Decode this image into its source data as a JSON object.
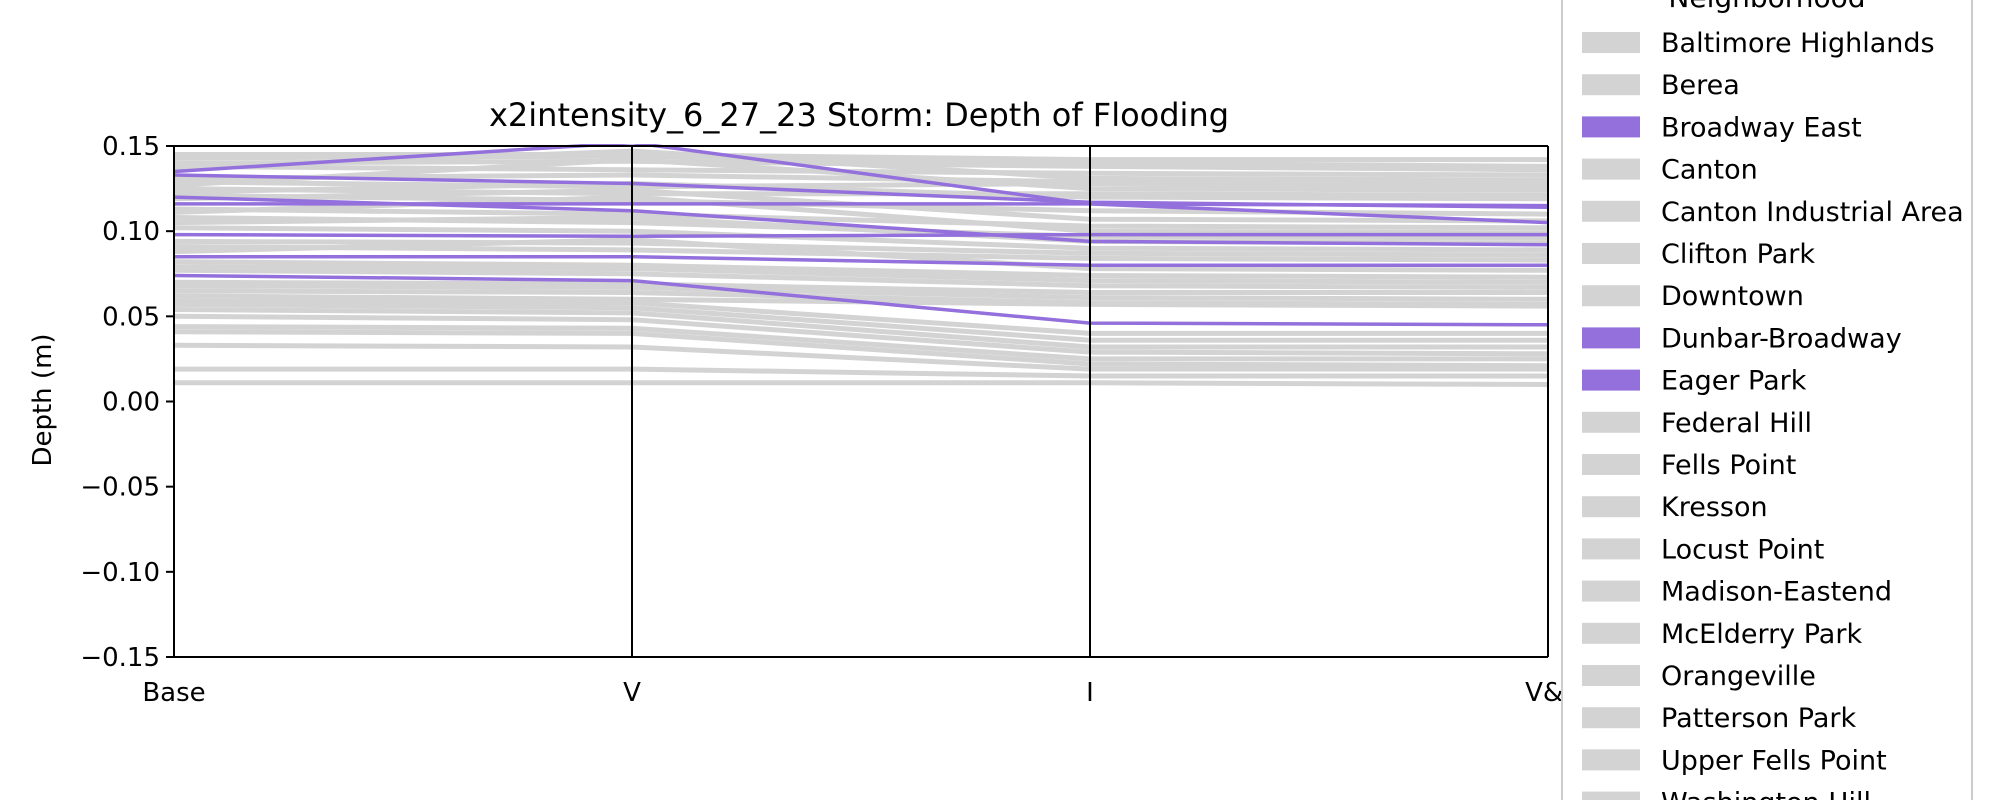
{
  "chart_data": {
    "type": "line",
    "subtype": "parallel-coordinates",
    "title": "x2intensity_6_27_23 Storm: Depth of Flooding",
    "xlabel": "",
    "ylabel": "Depth (m)",
    "categories": [
      "Base",
      "V",
      "I",
      "V&I"
    ],
    "ylim": [
      -0.15,
      0.15
    ],
    "yticks": [
      "0.15",
      "0.10",
      "0.05",
      "0.00",
      "−0.05",
      "−0.10",
      "−0.15"
    ],
    "ytick_values": [
      0.15,
      0.1,
      0.05,
      0.0,
      -0.05,
      -0.1,
      -0.15
    ],
    "grid": false,
    "legend_position": "right",
    "legend_title": "Neighborhood",
    "highlight_color": "#9370db",
    "background_color": "#d3d3d3",
    "legend": [
      {
        "name": "Baltimore Highlands",
        "highlighted": false
      },
      {
        "name": "Berea",
        "highlighted": false
      },
      {
        "name": "Broadway East",
        "highlighted": true
      },
      {
        "name": "Canton",
        "highlighted": false
      },
      {
        "name": "Canton Industrial Area",
        "highlighted": false
      },
      {
        "name": "Clifton Park",
        "highlighted": false
      },
      {
        "name": "Downtown",
        "highlighted": false
      },
      {
        "name": "Dunbar-Broadway",
        "highlighted": true
      },
      {
        "name": "Eager Park",
        "highlighted": true
      },
      {
        "name": "Federal Hill",
        "highlighted": false
      },
      {
        "name": "Fells Point",
        "highlighted": false
      },
      {
        "name": "Kresson",
        "highlighted": false
      },
      {
        "name": "Locust Point",
        "highlighted": false
      },
      {
        "name": "Madison-Eastend",
        "highlighted": false
      },
      {
        "name": "McElderry Park",
        "highlighted": false
      },
      {
        "name": "Orangeville",
        "highlighted": false
      },
      {
        "name": "Patterson Park",
        "highlighted": false
      },
      {
        "name": "Upper Fells Point",
        "highlighted": false
      },
      {
        "name": "Washington Hill",
        "highlighted": false
      }
    ],
    "highlighted_series": [
      {
        "values": [
          0.116,
          0.116,
          0.116,
          0.115
        ]
      },
      {
        "values": [
          0.133,
          0.128,
          0.117,
          0.114
        ]
      },
      {
        "values": [
          0.098,
          0.097,
          0.098,
          0.098
        ]
      },
      {
        "values": [
          0.085,
          0.085,
          0.08,
          0.08
        ]
      },
      {
        "values": [
          0.074,
          0.071,
          0.046,
          0.045
        ]
      },
      {
        "values": [
          0.135,
          0.152,
          0.116,
          0.105
        ]
      },
      {
        "values": [
          0.12,
          0.112,
          0.094,
          0.092
        ]
      }
    ],
    "background_series": [
      {
        "values": [
          0.145,
          0.145,
          0.142,
          0.142
        ]
      },
      {
        "values": [
          0.143,
          0.144,
          0.14,
          0.138
        ]
      },
      {
        "values": [
          0.14,
          0.141,
          0.138,
          0.136
        ]
      },
      {
        "values": [
          0.138,
          0.136,
          0.134,
          0.133
        ]
      },
      {
        "values": [
          0.137,
          0.147,
          0.131,
          0.13
        ]
      },
      {
        "values": [
          0.131,
          0.133,
          0.129,
          0.128
        ]
      },
      {
        "values": [
          0.129,
          0.126,
          0.128,
          0.126
        ]
      },
      {
        "values": [
          0.127,
          0.142,
          0.125,
          0.124
        ]
      },
      {
        "values": [
          0.125,
          0.122,
          0.122,
          0.121
        ]
      },
      {
        "values": [
          0.123,
          0.128,
          0.12,
          0.119
        ]
      },
      {
        "values": [
          0.121,
          0.118,
          0.112,
          0.11
        ]
      },
      {
        "values": [
          0.119,
          0.124,
          0.107,
          0.106
        ]
      },
      {
        "values": [
          0.113,
          0.11,
          0.103,
          0.102
        ]
      },
      {
        "values": [
          0.111,
          0.12,
          0.1,
          0.099
        ]
      },
      {
        "values": [
          0.108,
          0.105,
          0.097,
          0.096
        ]
      },
      {
        "values": [
          0.105,
          0.108,
          0.094,
          0.093
        ]
      },
      {
        "values": [
          0.102,
          0.1,
          0.09,
          0.089
        ]
      },
      {
        "values": [
          0.094,
          0.093,
          0.087,
          0.086
        ]
      },
      {
        "values": [
          0.091,
          0.089,
          0.084,
          0.083
        ]
      },
      {
        "values": [
          0.088,
          0.095,
          0.078,
          0.077
        ]
      },
      {
        "values": [
          0.082,
          0.08,
          0.074,
          0.073
        ]
      },
      {
        "values": [
          0.079,
          0.078,
          0.071,
          0.07
        ]
      },
      {
        "values": [
          0.077,
          0.075,
          0.068,
          0.067
        ]
      },
      {
        "values": [
          0.07,
          0.069,
          0.064,
          0.064
        ]
      },
      {
        "values": [
          0.068,
          0.067,
          0.061,
          0.06
        ]
      },
      {
        "values": [
          0.065,
          0.064,
          0.058,
          0.057
        ]
      },
      {
        "values": [
          0.062,
          0.06,
          0.057,
          0.056
        ]
      },
      {
        "values": [
          0.059,
          0.058,
          0.04,
          0.04
        ]
      },
      {
        "values": [
          0.057,
          0.055,
          0.036,
          0.036
        ]
      },
      {
        "values": [
          0.054,
          0.052,
          0.032,
          0.032
        ]
      },
      {
        "values": [
          0.05,
          0.048,
          0.029,
          0.028
        ]
      },
      {
        "values": [
          0.044,
          0.043,
          0.025,
          0.025
        ]
      },
      {
        "values": [
          0.041,
          0.04,
          0.022,
          0.021
        ]
      },
      {
        "values": [
          0.033,
          0.032,
          0.019,
          0.019
        ]
      },
      {
        "values": [
          0.019,
          0.019,
          0.015,
          0.015
        ]
      },
      {
        "values": [
          0.011,
          0.011,
          0.011,
          0.01
        ]
      }
    ]
  }
}
